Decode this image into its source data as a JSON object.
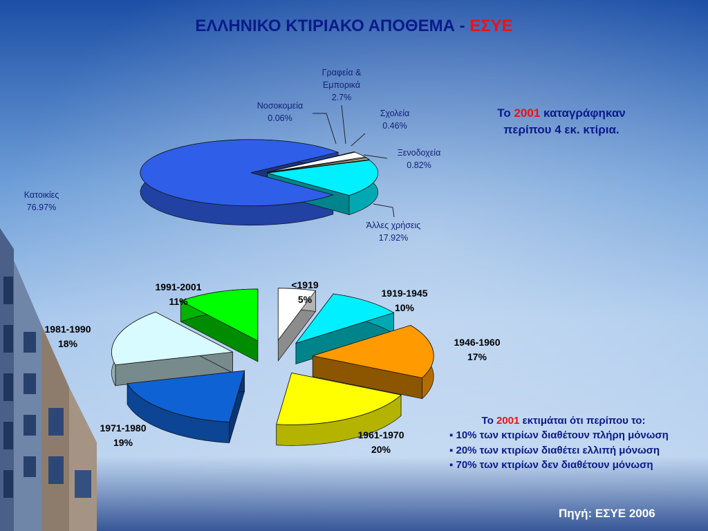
{
  "title": {
    "main": "ΕΛΛΗΝΙΚΟ ΚΤΙΡΙΑΚΟ ΑΠΟΘΕΜΑ - ",
    "highlight": "ΕΣΥΕ"
  },
  "colors": {
    "title": "#0a1a8c",
    "highlight": "#ee1111",
    "label": "#14217a"
  },
  "chart_data": [
    {
      "type": "pie",
      "slices": [
        {
          "label": "Κατοικίες",
          "value": 76.97,
          "value_text": "76.97%",
          "color": "#2f5ee8",
          "exploded": true
        },
        {
          "label": "Νοσοκομεία",
          "value": 0.06,
          "value_text": "0.06%",
          "color": "#7a1a2a"
        },
        {
          "label": "Γραφεία & Εμπορικά",
          "value": 2.7,
          "value_text": "2.7%",
          "color": "#ffffff"
        },
        {
          "label": "Σχολεία",
          "value": 0.46,
          "value_text": "0.46%",
          "color": "#e4e4f4"
        },
        {
          "label": "Ξενοδοχεία",
          "value": 0.82,
          "value_text": "0.82%",
          "color": "#c8b888"
        },
        {
          "label": "Άλλες χρήσεις",
          "value": 17.92,
          "value_text": "17.92%",
          "color": "#00f0ff"
        }
      ]
    },
    {
      "type": "pie",
      "slices": [
        {
          "label": "<1919",
          "value": 5,
          "value_text": "5%",
          "color": "#ffffff"
        },
        {
          "label": "1919-1945",
          "value": 10,
          "value_text": "10%",
          "color": "#00f0ff"
        },
        {
          "label": "1946-1960",
          "value": 17,
          "value_text": "17%",
          "color": "#ff9a00"
        },
        {
          "label": "1961-1970",
          "value": 20,
          "value_text": "20%",
          "color": "#ffff00"
        },
        {
          "label": "1971-1980",
          "value": 19,
          "value_text": "19%",
          "color": "#0f62d4"
        },
        {
          "label": "1981-1990",
          "value": 18,
          "value_text": "18%",
          "color": "#d8fbff"
        },
        {
          "label": "1991-2001",
          "value": 11,
          "value_text": "11%",
          "color": "#00ff00"
        }
      ]
    }
  ],
  "note1": {
    "prefix": "Το ",
    "year": "2001",
    "suffix": " καταγράφηκαν",
    "line2": "περίπου 4 εκ. κτίρια."
  },
  "note2": {
    "prefix": "Το ",
    "year": "2001",
    "suffix": " εκτιμάται ότι περίπου το:",
    "bullets": [
      "▪ 10% των κτιρίων διαθέτουν πλήρη μόνωση",
      "▪ 20% των κτιρίων διαθέτει ελλιπή μόνωση",
      "▪ 70% των κτιρίων δεν διαθέτουν μόνωση"
    ]
  },
  "source": "Πηγή: ΕΣΥΕ 2006"
}
